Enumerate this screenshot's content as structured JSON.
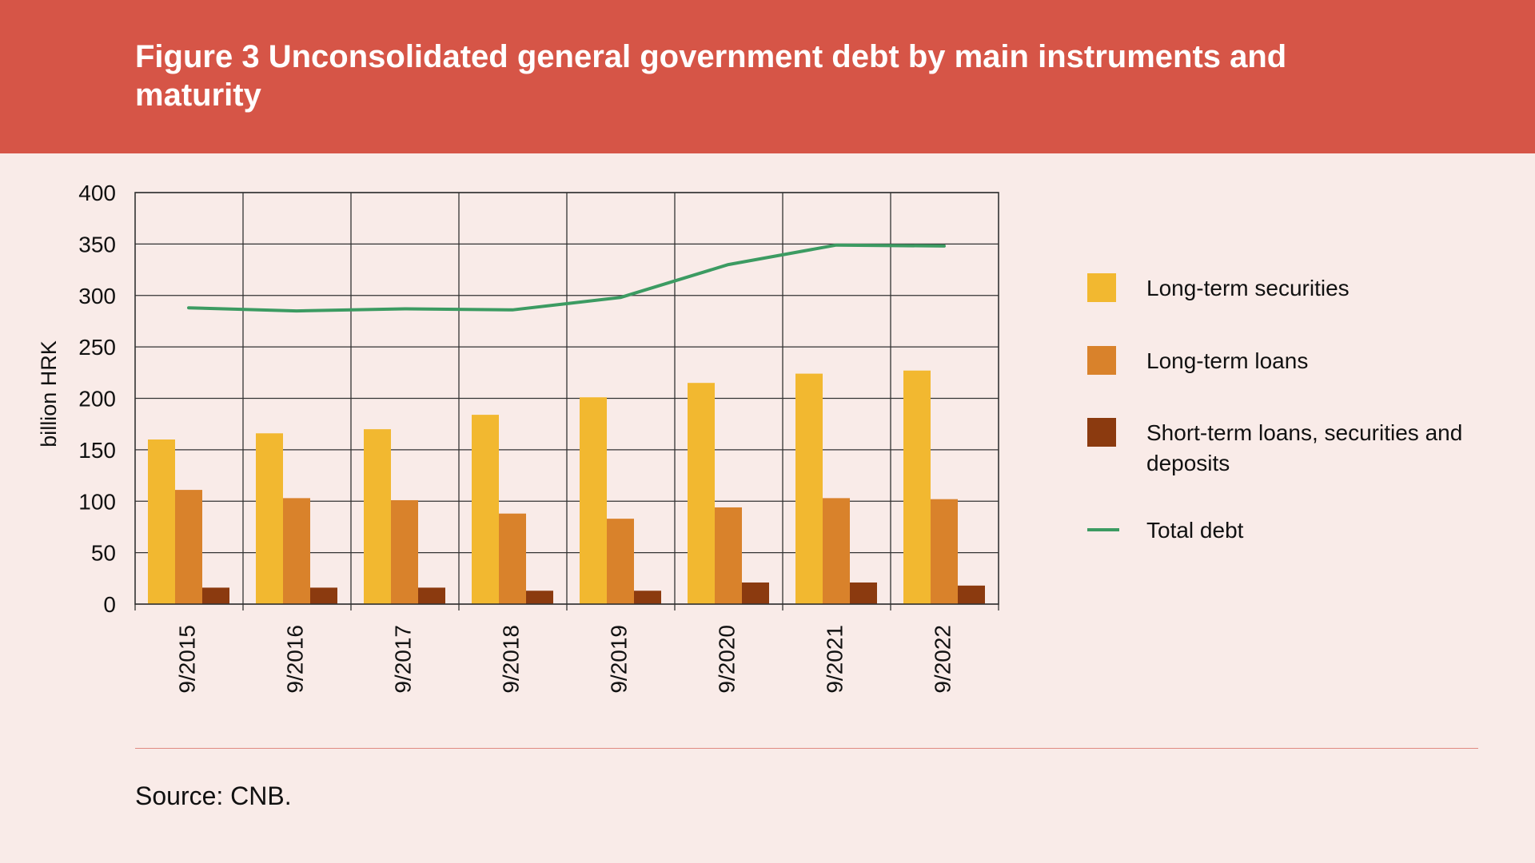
{
  "figure": {
    "title": "Figure 3 Unconsolidated general government debt by main instruments and maturity",
    "source": "Source: CNB."
  },
  "colors": {
    "background": "#f9ebe8",
    "header": "#d65547",
    "long_term_securities": "#f2b830",
    "long_term_loans": "#d9822b",
    "short_term": "#8b3a0f",
    "total_debt": "#3c9b62",
    "grid": "#333333"
  },
  "chart_data": {
    "type": "bar",
    "categories": [
      "9/2015",
      "9/2016",
      "9/2017",
      "9/2018",
      "9/2019",
      "9/2020",
      "9/2021",
      "9/2022"
    ],
    "ylabel": "billion HRK",
    "ylim": [
      0,
      400
    ],
    "yticks": [
      0,
      50,
      100,
      150,
      200,
      250,
      300,
      350,
      400
    ],
    "grid": true,
    "legend_position": "right",
    "series": [
      {
        "name": "Long-term securities",
        "kind": "bar",
        "values": [
          160,
          166,
          170,
          184,
          201,
          215,
          224,
          227
        ]
      },
      {
        "name": "Long-term loans",
        "kind": "bar",
        "values": [
          111,
          103,
          101,
          88,
          83,
          94,
          103,
          102
        ]
      },
      {
        "name": "Short-term loans, securities and deposits",
        "kind": "bar",
        "values": [
          16,
          16,
          16,
          13,
          13,
          21,
          21,
          18
        ]
      },
      {
        "name": "Total debt",
        "kind": "line",
        "values": [
          288,
          285,
          287,
          286,
          298,
          330,
          349,
          348
        ]
      }
    ]
  }
}
